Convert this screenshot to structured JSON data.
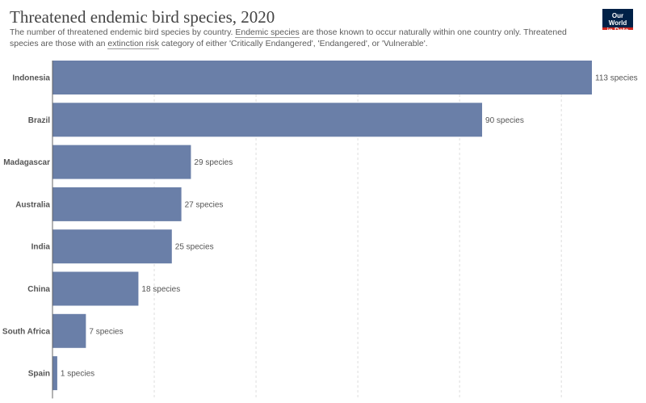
{
  "header": {
    "title": "Threatened endemic bird species, 2020",
    "subtitle_part1": "The number of threatened endemic bird species by country. ",
    "subtitle_link1": "Endemic species",
    "subtitle_part2": " are those known to occur naturally within one country only. Threatened species are those with an ",
    "subtitle_link2": "extinction risk",
    "subtitle_part3": " category of either 'Critically Endangered', 'Endangered', or 'Vulnerable'."
  },
  "logo": {
    "line1": "Our World",
    "line2": "in Data"
  },
  "colors": {
    "bar": "#6a7fa8",
    "grid": "#dddddd",
    "axis": "#666666"
  },
  "chart_data": {
    "type": "bar",
    "orientation": "horizontal",
    "title": "Threatened endemic bird species, 2020",
    "categories": [
      "Indonesia",
      "Brazil",
      "Madagascar",
      "Australia",
      "India",
      "China",
      "South Africa",
      "Spain"
    ],
    "values": [
      113,
      90,
      29,
      27,
      25,
      18,
      7,
      1
    ],
    "value_suffix": " species",
    "xlim": [
      0,
      113
    ],
    "grid": true,
    "xlabel": "",
    "ylabel": ""
  }
}
